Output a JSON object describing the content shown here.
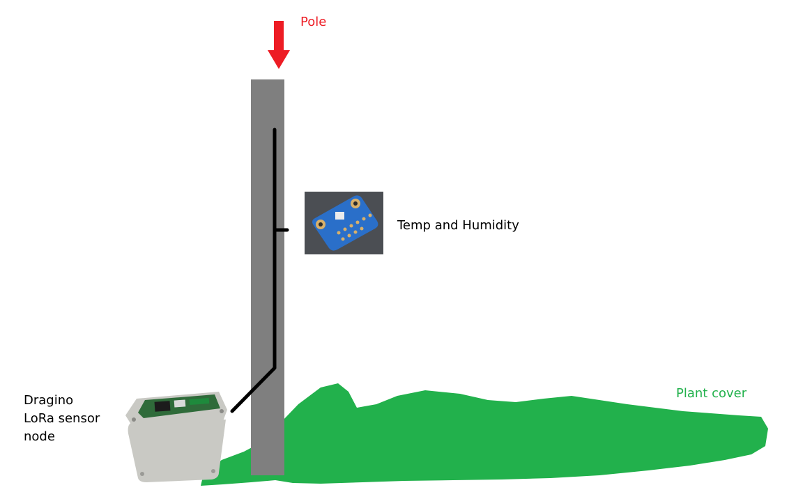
{
  "labels": {
    "pole": "Pole",
    "sensor": "Temp and Humidity",
    "node_lines": [
      "Dragino",
      "LoRa sensor",
      "node"
    ],
    "plant": "Plant cover"
  },
  "colors": {
    "background": "#ffffff",
    "pole": "#7f7f7f",
    "arrow": "#ed1c24",
    "pole_label": "#ed1c24",
    "plant": "#22b14c",
    "plant_label": "#22b14c",
    "cable": "#000000",
    "sensor_board": "#2a6fc9",
    "enclosure": "#c9c9c4",
    "node_pcb": "#2f6b3a"
  },
  "icons": {
    "arrow": "down-arrow-icon",
    "sensor": "temp-humidity-sensor-board-icon",
    "node": "lora-node-enclosure-icon"
  }
}
